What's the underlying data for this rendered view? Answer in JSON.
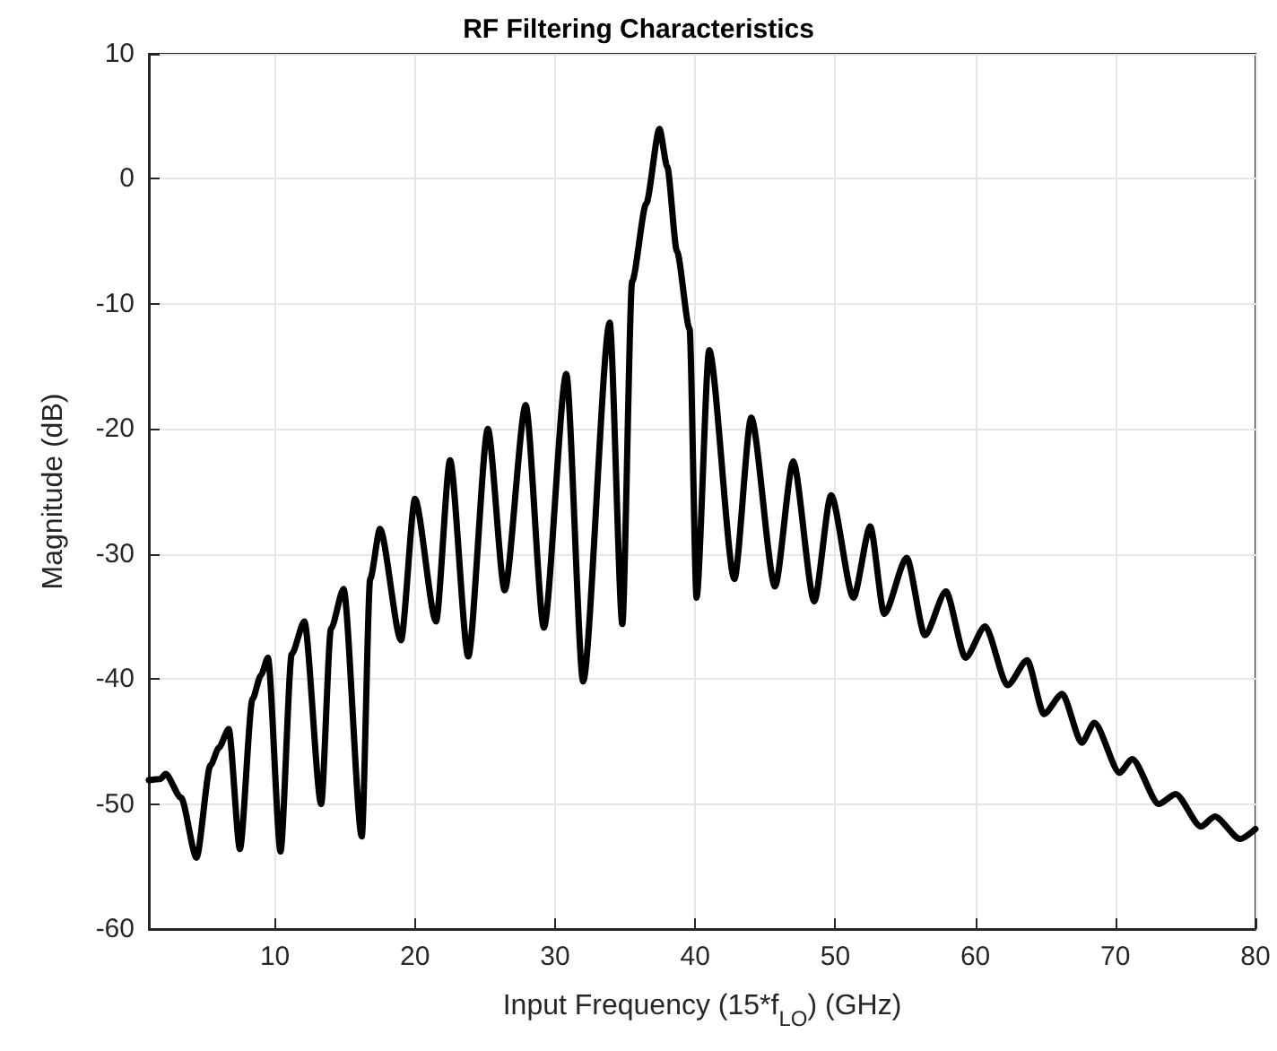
{
  "chart_data": {
    "type": "line",
    "title": "RF Filtering Characteristics",
    "xlabel": "Input Frequency (15*f$_{LO}$) (GHz)",
    "ylabel": "Magnitude (dB)",
    "xlim": [
      1,
      80
    ],
    "xticks": [
      10,
      20,
      30,
      40,
      50,
      60,
      70,
      80
    ],
    "ylim": [
      -60,
      10
    ],
    "yticks": [
      -60,
      -50,
      -40,
      -30,
      -20,
      -10,
      0,
      10
    ],
    "grid": true,
    "marker": "none",
    "line_style": "solid",
    "x": [
      1,
      1.8,
      2.2,
      3.3,
      4.4,
      5.4,
      6.0,
      6.7,
      7.5,
      8.4,
      9.0,
      9.5,
      10.4,
      11.2,
      12.1,
      13.3,
      14.0,
      14.9,
      16.2,
      16.8,
      17.5,
      19.0,
      20.0,
      21.5,
      22.5,
      23.8,
      25.2,
      26.4,
      27.9,
      29.2,
      30.8,
      32.0,
      33.9,
      34.8,
      35.5,
      36.5,
      37.45,
      38.0,
      38.7,
      39.6,
      40.1,
      41.0,
      42.8,
      44.0,
      45.7,
      47.0,
      48.5,
      49.7,
      51.3,
      52.5,
      53.5,
      55.1,
      56.4,
      57.9,
      59.3,
      60.7,
      62.3,
      63.7,
      64.9,
      66.2,
      67.6,
      68.5,
      70.3,
      71.2,
      73.1,
      74.3,
      76.1,
      77.1,
      78.9,
      80
    ],
    "series": [
      {
        "color": "#000000",
        "values": [
          -48.1,
          -48.0,
          -47.6,
          -49.5,
          -54.3,
          -46.9,
          -45.5,
          -44,
          -53.6,
          -41.6,
          -39.7,
          -38.3,
          -53.8,
          -38,
          -35.4,
          -50,
          -36,
          -32.8,
          -52.6,
          -32,
          -28,
          -36.9,
          -25.6,
          -35.4,
          -22.5,
          -38.2,
          -20,
          -32.9,
          -18.1,
          -35.9,
          -15.6,
          -40.2,
          -11.5,
          -35.6,
          -8.2,
          -2,
          4.0,
          1,
          -5.8,
          -12,
          -33.5,
          -13.7,
          -32,
          -19.1,
          -32.6,
          -22.6,
          -33.8,
          -25.3,
          -33.5,
          -27.8,
          -34.8,
          -30.3,
          -36.5,
          -33,
          -38.3,
          -35.8,
          -40.5,
          -38.5,
          -42.8,
          -41.2,
          -45.1,
          -43.5,
          -47.5,
          -46.4,
          -50,
          -49.2,
          -51.8,
          -51,
          -52.8,
          -52
        ]
      }
    ]
  }
}
